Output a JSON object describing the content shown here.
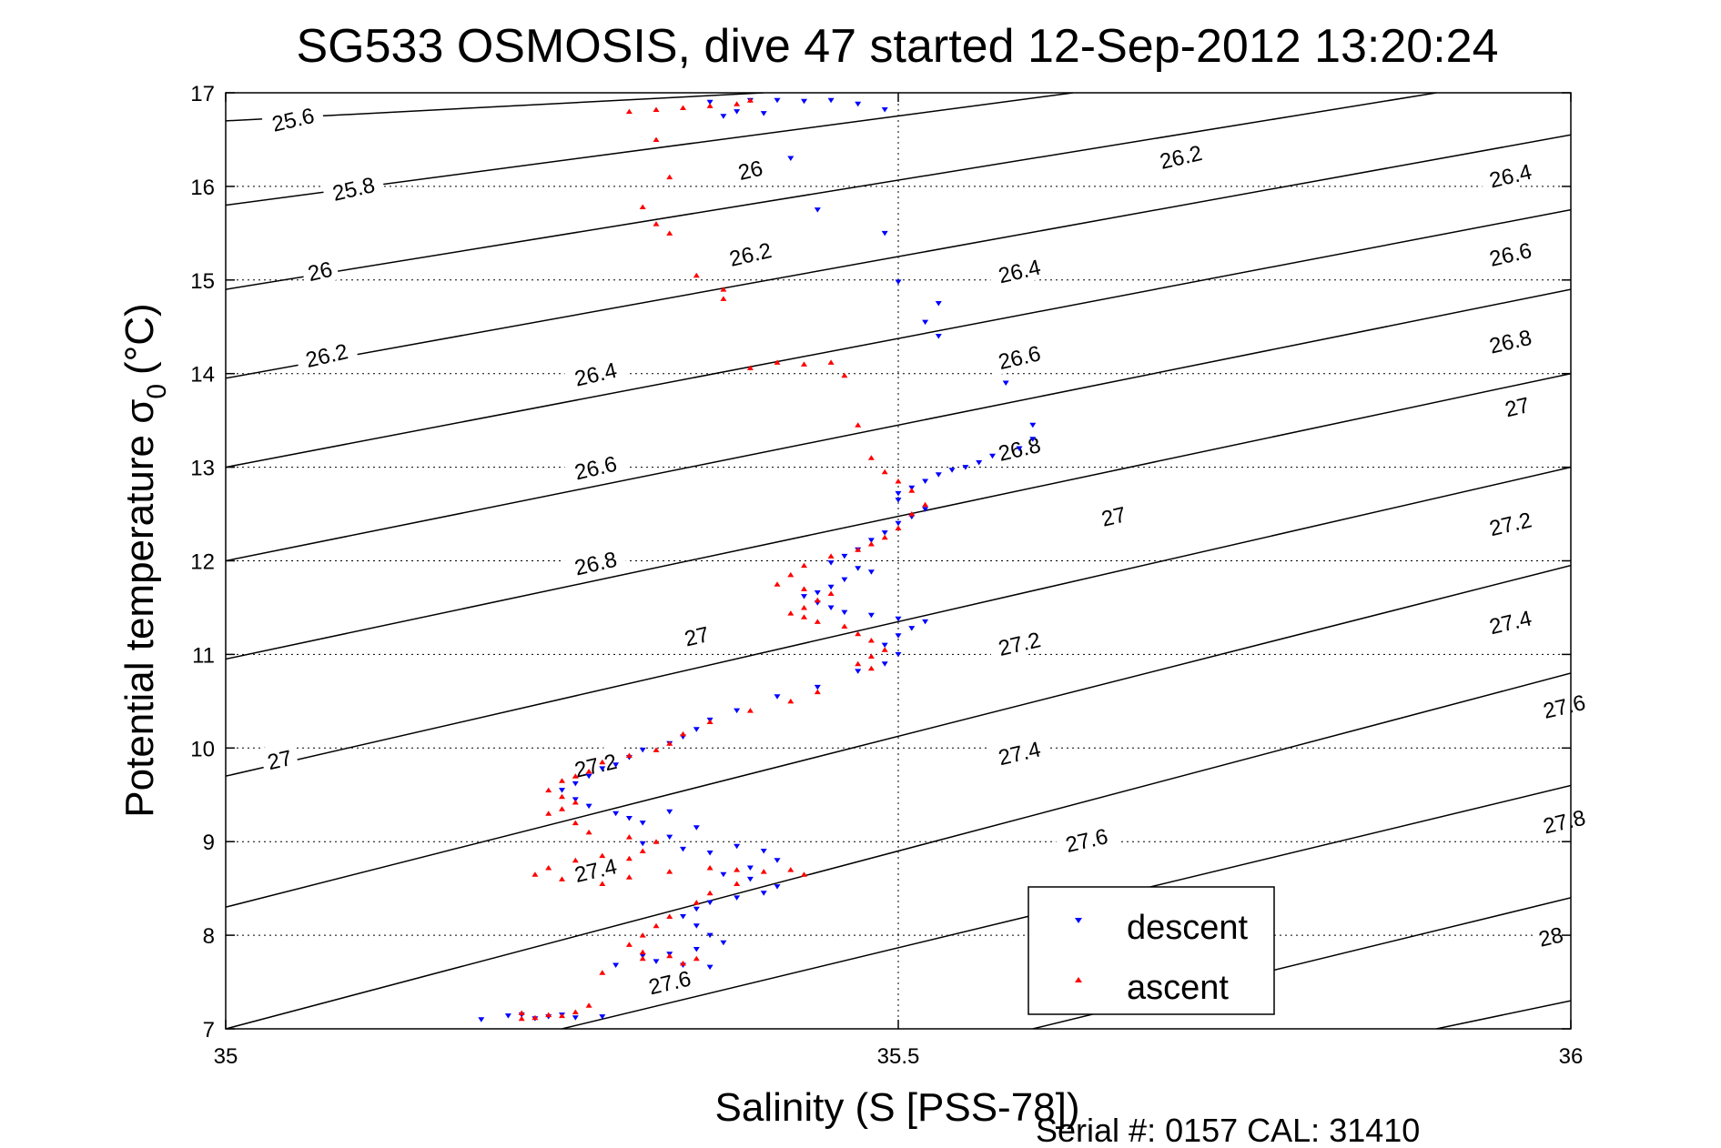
{
  "chart_data": {
    "type": "scatter",
    "title": "SG533 OSMOSIS, dive 47 started 12-Sep-2012 13:20:24",
    "xlabel": "Salinity (S [PSS-78])",
    "ylabel_main": "Potential temperature σ",
    "ylabel_sub": "0",
    "ylabel_unit": "(°C)",
    "footer": "Serial #: 0157  CAL: 31410",
    "xlim": [
      35,
      36
    ],
    "ylim": [
      7,
      17
    ],
    "x_ticks": [
      "35",
      "35.5",
      "36"
    ],
    "y_ticks": [
      "7",
      "8",
      "9",
      "10",
      "11",
      "12",
      "13",
      "14",
      "15",
      "16",
      "17"
    ],
    "grid": "dotted",
    "legend": {
      "placement": "bottom-right",
      "entries": [
        "descent",
        "ascent"
      ]
    },
    "colors": {
      "descent": "#0000ff",
      "ascent": "#ff0000",
      "contour": "#000000",
      "grid": "#000000"
    },
    "contours": [
      {
        "label": "25.6",
        "points": [
          [
            35,
            16.7
          ],
          [
            35.4,
            17.0
          ]
        ]
      },
      {
        "label": "25.8",
        "points": [
          [
            35,
            15.8
          ],
          [
            35.63,
            17.0
          ]
        ]
      },
      {
        "label": "26",
        "points": [
          [
            35,
            14.9
          ],
          [
            35.9,
            17.0
          ]
        ]
      },
      {
        "label": "26.2",
        "points": [
          [
            35,
            13.95
          ],
          [
            36,
            16.55
          ]
        ]
      },
      {
        "label": "26.4",
        "points": [
          [
            35,
            13.0
          ],
          [
            36,
            15.75
          ]
        ]
      },
      {
        "label": "26.6",
        "points": [
          [
            35,
            12.0
          ],
          [
            36,
            14.9
          ]
        ]
      },
      {
        "label": "26.8",
        "points": [
          [
            35,
            10.95
          ],
          [
            36,
            14.0
          ]
        ]
      },
      {
        "label": "27",
        "points": [
          [
            35,
            9.7
          ],
          [
            36,
            13.0
          ]
        ]
      },
      {
        "label": "27.2",
        "points": [
          [
            35,
            8.3
          ],
          [
            36,
            11.95
          ]
        ]
      },
      {
        "label": "27.4",
        "points": [
          [
            35,
            7.0
          ],
          [
            36,
            10.8
          ]
        ]
      },
      {
        "label": "27.6",
        "points": [
          [
            35.25,
            7.0
          ],
          [
            36,
            9.6
          ]
        ]
      },
      {
        "label": "27.8",
        "points": [
          [
            35.6,
            7.0
          ],
          [
            36,
            8.4
          ]
        ]
      },
      {
        "label": "28",
        "points": [
          [
            35.9,
            7.0
          ],
          [
            36,
            7.3
          ]
        ]
      }
    ],
    "contour_labels": [
      {
        "text": "25.6",
        "x": 35.05,
        "y": 16.72
      },
      {
        "text": "25.8",
        "x": 35.095,
        "y": 15.98
      },
      {
        "text": "26",
        "x": 35.39,
        "y": 16.18
      },
      {
        "text": "26.2",
        "x": 35.71,
        "y": 16.32
      },
      {
        "text": "26.4",
        "x": 35.955,
        "y": 16.12
      },
      {
        "text": "26",
        "x": 35.07,
        "y": 15.1
      },
      {
        "text": "26.2",
        "x": 35.39,
        "y": 15.28
      },
      {
        "text": "26.4",
        "x": 35.59,
        "y": 15.1
      },
      {
        "text": "26.6",
        "x": 35.955,
        "y": 15.28
      },
      {
        "text": "26.2",
        "x": 35.075,
        "y": 14.2
      },
      {
        "text": "26.4",
        "x": 35.275,
        "y": 14.0
      },
      {
        "text": "26.6",
        "x": 35.59,
        "y": 14.18
      },
      {
        "text": "26.8",
        "x": 35.955,
        "y": 14.35
      },
      {
        "text": "27",
        "x": 35.96,
        "y": 13.65
      },
      {
        "text": "26.6",
        "x": 35.275,
        "y": 13.0
      },
      {
        "text": "26.8",
        "x": 35.59,
        "y": 13.2
      },
      {
        "text": "26.8",
        "x": 35.275,
        "y": 11.98
      },
      {
        "text": "27",
        "x": 35.66,
        "y": 12.48
      },
      {
        "text": "27.2",
        "x": 35.955,
        "y": 12.4
      },
      {
        "text": "27",
        "x": 35.35,
        "y": 11.2
      },
      {
        "text": "27.2",
        "x": 35.59,
        "y": 11.12
      },
      {
        "text": "27.4",
        "x": 35.955,
        "y": 11.35
      },
      {
        "text": "27",
        "x": 35.04,
        "y": 9.88
      },
      {
        "text": "27.2",
        "x": 35.275,
        "y": 9.82
      },
      {
        "text": "27.4",
        "x": 35.59,
        "y": 9.95
      },
      {
        "text": "27.6",
        "x": 35.995,
        "y": 10.45
      },
      {
        "text": "27.4",
        "x": 35.275,
        "y": 8.7
      },
      {
        "text": "27.6",
        "x": 35.64,
        "y": 9.02
      },
      {
        "text": "27.8",
        "x": 35.995,
        "y": 9.22
      },
      {
        "text": "27.6",
        "x": 35.33,
        "y": 7.5
      },
      {
        "text": "28",
        "x": 35.985,
        "y": 7.99
      }
    ],
    "series": [
      {
        "name": "descent",
        "marker": "triangle-down",
        "points": [
          [
            35.39,
            16.92
          ],
          [
            35.41,
            16.92
          ],
          [
            35.43,
            16.91
          ],
          [
            35.45,
            16.92
          ],
          [
            35.47,
            16.88
          ],
          [
            35.49,
            16.82
          ],
          [
            35.4,
            16.78
          ],
          [
            35.37,
            16.75
          ],
          [
            35.38,
            16.8
          ],
          [
            35.36,
            16.9
          ],
          [
            35.42,
            16.3
          ],
          [
            35.44,
            15.75
          ],
          [
            35.49,
            15.5
          ],
          [
            35.5,
            14.98
          ],
          [
            35.53,
            14.75
          ],
          [
            35.52,
            14.55
          ],
          [
            35.53,
            14.4
          ],
          [
            35.58,
            13.9
          ],
          [
            35.6,
            13.45
          ],
          [
            35.6,
            13.3
          ],
          [
            35.59,
            13.2
          ],
          [
            35.57,
            13.12
          ],
          [
            35.56,
            13.05
          ],
          [
            35.55,
            13.0
          ],
          [
            35.54,
            12.97
          ],
          [
            35.53,
            12.92
          ],
          [
            35.52,
            12.85
          ],
          [
            35.51,
            12.78
          ],
          [
            35.5,
            12.72
          ],
          [
            35.5,
            12.65
          ],
          [
            35.52,
            12.55
          ],
          [
            35.51,
            12.47
          ],
          [
            35.5,
            12.4
          ],
          [
            35.49,
            12.3
          ],
          [
            35.48,
            12.22
          ],
          [
            35.47,
            12.12
          ],
          [
            35.46,
            12.05
          ],
          [
            35.45,
            11.98
          ],
          [
            35.47,
            11.92
          ],
          [
            35.48,
            11.88
          ],
          [
            35.46,
            11.8
          ],
          [
            35.45,
            11.72
          ],
          [
            35.44,
            11.66
          ],
          [
            35.43,
            11.62
          ],
          [
            35.44,
            11.55
          ],
          [
            35.45,
            11.5
          ],
          [
            35.46,
            11.45
          ],
          [
            35.48,
            11.42
          ],
          [
            35.5,
            11.38
          ],
          [
            35.52,
            11.35
          ],
          [
            35.51,
            11.28
          ],
          [
            35.5,
            11.2
          ],
          [
            35.49,
            11.1
          ],
          [
            35.5,
            11.0
          ],
          [
            35.49,
            10.9
          ],
          [
            35.47,
            10.82
          ],
          [
            35.44,
            10.65
          ],
          [
            35.41,
            10.55
          ],
          [
            35.38,
            10.4
          ],
          [
            35.36,
            10.3
          ],
          [
            35.35,
            10.2
          ],
          [
            35.34,
            10.12
          ],
          [
            35.33,
            10.05
          ],
          [
            35.31,
            9.98
          ],
          [
            35.3,
            9.9
          ],
          [
            35.29,
            9.82
          ],
          [
            35.28,
            9.78
          ],
          [
            35.27,
            9.7
          ],
          [
            35.26,
            9.62
          ],
          [
            35.25,
            9.55
          ],
          [
            35.26,
            9.45
          ],
          [
            35.27,
            9.38
          ],
          [
            35.29,
            9.3
          ],
          [
            35.3,
            9.25
          ],
          [
            35.31,
            9.2
          ],
          [
            35.33,
            9.32
          ],
          [
            35.35,
            9.15
          ],
          [
            35.33,
            9.05
          ],
          [
            35.31,
            8.98
          ],
          [
            35.34,
            8.92
          ],
          [
            35.36,
            8.88
          ],
          [
            35.38,
            8.95
          ],
          [
            35.4,
            8.9
          ],
          [
            35.41,
            8.8
          ],
          [
            35.39,
            8.72
          ],
          [
            35.37,
            8.65
          ],
          [
            35.39,
            8.6
          ],
          [
            35.41,
            8.52
          ],
          [
            35.4,
            8.45
          ],
          [
            35.38,
            8.4
          ],
          [
            35.36,
            8.35
          ],
          [
            35.35,
            8.28
          ],
          [
            35.34,
            8.2
          ],
          [
            35.35,
            8.1
          ],
          [
            35.36,
            8.0
          ],
          [
            35.37,
            7.92
          ],
          [
            35.35,
            7.85
          ],
          [
            35.33,
            7.8
          ],
          [
            35.31,
            7.78
          ],
          [
            35.32,
            7.72
          ],
          [
            35.34,
            7.68
          ],
          [
            35.36,
            7.66
          ],
          [
            35.29,
            7.68
          ],
          [
            35.22,
            7.15
          ],
          [
            35.24,
            7.13
          ],
          [
            35.26,
            7.12
          ],
          [
            35.28,
            7.13
          ],
          [
            35.19,
            7.1
          ],
          [
            35.21,
            7.14
          ],
          [
            35.23,
            7.11
          ],
          [
            35.25,
            7.15
          ]
        ]
      },
      {
        "name": "ascent",
        "marker": "triangle-up",
        "points": [
          [
            35.32,
            16.82
          ],
          [
            35.34,
            16.84
          ],
          [
            35.36,
            16.86
          ],
          [
            35.38,
            16.88
          ],
          [
            35.39,
            16.92
          ],
          [
            35.3,
            16.8
          ],
          [
            35.32,
            16.5
          ],
          [
            35.33,
            16.1
          ],
          [
            35.31,
            15.78
          ],
          [
            35.32,
            15.6
          ],
          [
            35.33,
            15.5
          ],
          [
            35.35,
            15.05
          ],
          [
            35.37,
            14.9
          ],
          [
            35.37,
            14.8
          ],
          [
            35.39,
            14.06
          ],
          [
            35.41,
            14.12
          ],
          [
            35.43,
            14.1
          ],
          [
            35.45,
            14.12
          ],
          [
            35.46,
            13.98
          ],
          [
            35.47,
            13.45
          ],
          [
            35.48,
            13.1
          ],
          [
            35.49,
            12.95
          ],
          [
            35.5,
            12.85
          ],
          [
            35.51,
            12.75
          ],
          [
            35.52,
            12.6
          ],
          [
            35.51,
            12.5
          ],
          [
            35.5,
            12.35
          ],
          [
            35.49,
            12.25
          ],
          [
            35.48,
            12.18
          ],
          [
            35.47,
            12.12
          ],
          [
            35.45,
            12.05
          ],
          [
            35.43,
            11.95
          ],
          [
            35.42,
            11.85
          ],
          [
            35.41,
            11.75
          ],
          [
            35.43,
            11.7
          ],
          [
            35.45,
            11.65
          ],
          [
            35.44,
            11.58
          ],
          [
            35.43,
            11.5
          ],
          [
            35.42,
            11.44
          ],
          [
            35.43,
            11.4
          ],
          [
            35.44,
            11.35
          ],
          [
            35.46,
            11.3
          ],
          [
            35.47,
            11.22
          ],
          [
            35.48,
            11.15
          ],
          [
            35.49,
            11.05
          ],
          [
            35.48,
            10.98
          ],
          [
            35.47,
            10.9
          ],
          [
            35.48,
            10.85
          ],
          [
            35.44,
            10.6
          ],
          [
            35.42,
            10.5
          ],
          [
            35.39,
            10.4
          ],
          [
            35.36,
            10.28
          ],
          [
            35.34,
            10.15
          ],
          [
            35.33,
            10.05
          ],
          [
            35.32,
            9.98
          ],
          [
            35.3,
            9.92
          ],
          [
            35.28,
            9.85
          ],
          [
            35.27,
            9.75
          ],
          [
            35.26,
            9.7
          ],
          [
            35.25,
            9.65
          ],
          [
            35.24,
            9.55
          ],
          [
            35.25,
            9.48
          ],
          [
            35.26,
            9.42
          ],
          [
            35.25,
            9.35
          ],
          [
            35.24,
            9.3
          ],
          [
            35.26,
            9.2
          ],
          [
            35.27,
            9.1
          ],
          [
            35.3,
            9.05
          ],
          [
            35.32,
            9.0
          ],
          [
            35.31,
            8.9
          ],
          [
            35.3,
            8.82
          ],
          [
            35.28,
            8.85
          ],
          [
            35.26,
            8.8
          ],
          [
            35.24,
            8.72
          ],
          [
            35.23,
            8.65
          ],
          [
            35.25,
            8.6
          ],
          [
            35.28,
            8.55
          ],
          [
            35.3,
            8.62
          ],
          [
            35.33,
            8.68
          ],
          [
            35.36,
            8.72
          ],
          [
            35.38,
            8.7
          ],
          [
            35.4,
            8.68
          ],
          [
            35.42,
            8.7
          ],
          [
            35.43,
            8.65
          ],
          [
            35.38,
            8.55
          ],
          [
            35.36,
            8.45
          ],
          [
            35.35,
            8.35
          ],
          [
            35.33,
            8.2
          ],
          [
            35.32,
            8.1
          ],
          [
            35.31,
            8.0
          ],
          [
            35.3,
            7.9
          ],
          [
            35.31,
            7.82
          ],
          [
            35.33,
            7.78
          ],
          [
            35.35,
            7.75
          ],
          [
            35.34,
            7.7
          ],
          [
            35.31,
            7.75
          ],
          [
            35.28,
            7.6
          ],
          [
            35.27,
            7.25
          ],
          [
            35.26,
            7.18
          ],
          [
            35.24,
            7.15
          ],
          [
            35.23,
            7.12
          ],
          [
            35.22,
            7.11
          ],
          [
            35.22,
            7.17
          ],
          [
            35.25,
            7.14
          ]
        ]
      }
    ]
  }
}
